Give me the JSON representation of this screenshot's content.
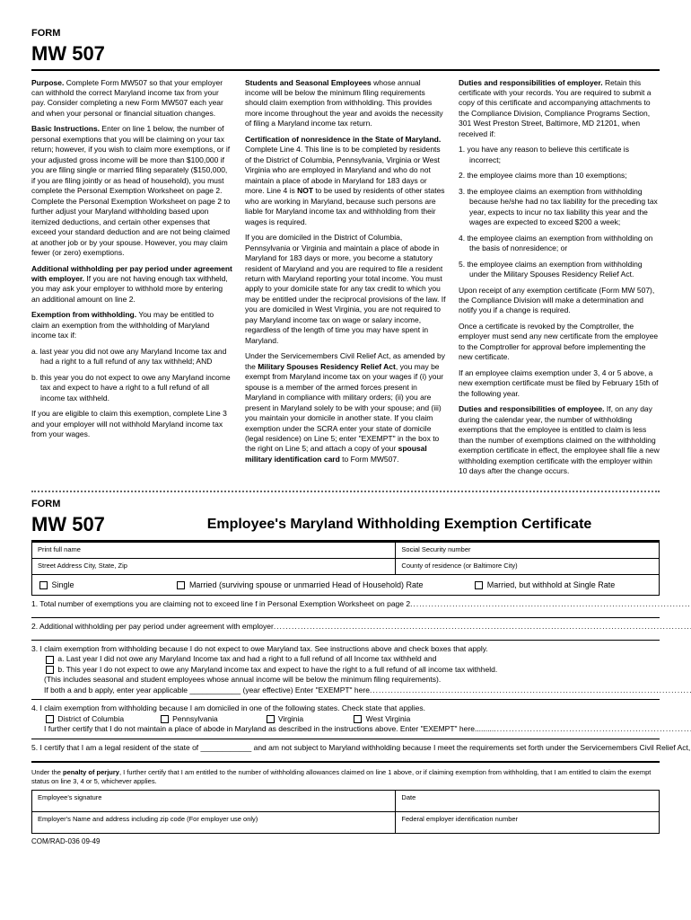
{
  "header": {
    "form_label": "FORM",
    "form_number": "MW 507"
  },
  "col1": {
    "p1": "Purpose. Complete Form MW507 so that your employer can withhold the correct Maryland income tax from your pay. Consider completing a new Form MW507 each year and when your personal or financial situation changes.",
    "p2": "Basic Instructions. Enter on line 1 below, the number of personal exemptions that you will be claiming on your tax return; however, if you wish to claim more exemptions, or if your adjusted gross income will be more than $100,000 if you are filing single or married filing separately ($150,000, if you are filing jointly or as head of household), you must complete the Personal Exemption Worksheet on page 2. Complete the Personal Exemption Worksheet on page 2 to further adjust your Maryland withholding based upon itemized deductions, and certain other expenses that exceed your standard deduction and are not being claimed at another job or by your spouse. However, you may claim fewer (or zero) exemptions.",
    "p3": "Additional withholding per pay period under agreement with employer. If you are not having enough tax withheld, you may ask your employer to withhold more by entering an additional amount on line 2.",
    "p4": "Exemption from withholding. You may be entitled to claim an exemption from the withholding of Maryland income tax if:",
    "p4a": "a. last year you did not owe any Maryland Income tax and had a right to a full refund of any tax withheld; AND",
    "p4b": "b. this year you do not expect to owe any Maryland income tax and expect to have a right to a full refund of all income tax withheld.",
    "p5": "If you are eligible to claim this exemption, complete Line 3 and your employer will not withhold Maryland income tax from your wages."
  },
  "col2": {
    "p1": "Students and Seasonal Employees whose annual income will be below the minimum filing requirements should claim exemption from withholding. This provides more income throughout the year and avoids the necessity of filing a Maryland income tax return.",
    "p2": "Certification of nonresidence in the State of Maryland. Complete Line 4. This line is to be completed by residents of the District of Columbia, Pennsylvania, Virginia or West Virginia who are employed in Maryland and who do not maintain a place of abode in Maryland for 183 days or more. Line 4 is NOT to be used by residents of other states who are working in Maryland, because such persons are liable for Maryland income tax and withholding from their wages is required.",
    "p3": "If you are domiciled in the District of Columbia, Pennsylvania or Virginia and maintain a place of abode in Maryland for 183 days or more, you become a statutory resident of Maryland and you are required to file a resident return with Maryland reporting your total income. You must apply to your domicile state for any tax credit to which you may be entitled under the reciprocal provisions of the law. If you are domiciled in West Virginia, you are not required to pay Maryland income tax on wage or salary income, regardless of the length of time you may have spent in Maryland.",
    "p4": "Under the Servicemembers Civil Relief Act, as amended by the Military Spouses Residency Relief Act, you may be exempt from Maryland income tax on your wages if (i) your spouse is a member of the armed forces present in Maryland in compliance with military orders; (ii) you are present in Maryland solely to be with your spouse; and (iii) you maintain your domicile in another state. If you claim exemption under the SCRA enter your state of domicile (legal residence) on Line 5; enter \"EXEMPT\" in the box to the right on Line 5; and attach a copy of your spousal military identification card to Form MW507."
  },
  "col3": {
    "h1": "Duties and responsibilities of employer.",
    "p1": "Retain this certificate with your records. You are required to submit a copy of this certificate and accompanying attachments to the Compliance Division, Compliance Programs Section, 301 West Preston Street, Baltimore, MD 21201, when received if:",
    "n1": "1. you have any reason to believe this certificate is incorrect;",
    "n2": "2. the employee claims more than 10 exemptions;",
    "n3": "3. the employee claims an exemption from withholding because he/she had no tax liability for the preceding tax year, expects to incur no tax liability this year and the wages are expected to exceed $200 a week;",
    "n4": "4. the employee claims an exemption from withholding on the basis of nonresidence; or",
    "n5": "5. the employee claims an exemption from withholding under the Military Spouses Residency Relief Act.",
    "p2": "Upon receipt of any exemption certificate (Form MW 507), the Compliance Division will make a determination and notify you if a change is required.",
    "p3": "Once a certificate is revoked by the Comptroller, the employer must send any new certificate from the employee to the Comptroller for approval before implementing the new certificate.",
    "p4": "If an employee claims exemption under 3, 4 or 5 above, a new exemption certificate must be filed by February 15th of the following year.",
    "h2": "Duties and responsibilities of employee.",
    "p5": "If, on any day during the calendar year, the number of withholding exemptions that the employee is entitled to claim is less than the number of exemptions claimed on the withholding exemption certificate in effect, the employee shall file a new withholding exemption certificate with the employer within 10 days after the change occurs."
  },
  "cert": {
    "title": "Employee's Maryland Withholding Exemption Certificate",
    "full_name": "Print full name",
    "ssn": "Social Security number",
    "address": "Street Address City, State, Zip",
    "county": "County of residence (or Baltimore City)",
    "single": "Single",
    "married_hoh": "Married (surviving spouse or unmarried Head of Household) Rate",
    "married_single": "Married, but withhold at Single Rate"
  },
  "lines": {
    "l1": "1. Total number of exemptions you are claiming not to exceed line f in Personal Exemption Worksheet on page 2",
    "l2": "2. Additional withholding per pay period under agreement with employer",
    "l3": "3. I claim exemption from withholding because I do not expect to owe Maryland tax. See instructions above and check boxes that apply.",
    "l3a": "a. Last year I did not owe any Maryland Income tax and had a right to a full refund of all Income tax withheld and",
    "l3b": "b. This year I do not expect to owe any Maryland income tax and expect to have the right to a full refund of all income tax withheld.",
    "l3c": "(This includes seasonal and student employees whose annual income will be below the minimum filing requirements).",
    "l3d": "If both a and b apply, enter year applicable ____________ (year effective) Enter \"EXEMPT\" here",
    "l4": "4. I claim exemption from withholding because I am domiciled in one of the following states. Check state that applies.",
    "l4_dc": "District of Columbia",
    "l4_pa": "Pennsylvania",
    "l4_va": "Virginia",
    "l4_wv": "West Virginia",
    "l4b": "I further certify that I do not maintain a place of abode in Maryland as described in the instructions above. Enter \"EXEMPT\" here",
    "l5": "5. I certify that I am a legal resident of the state of ____________ and am not subject to Maryland withholding because I meet the requirements set forth under the Servicemembers Civil Relief  Act, as amended by the Military Spouses Residency Relief Act. Enter \"EXEMPT\" here",
    "dollar": "$"
  },
  "perjury": "Under the penalty of perjury, I further certify that I am entitled to the number of withholding allowances claimed on line 1 above, or if claiming exemption from withholding, that I am entitled to claim the exempt status on line 3, 4 or 5, whichever applies.",
  "sig": {
    "emp_sig": "Employee's signature",
    "date": "Date",
    "employer": "Employer's Name and address including zip code (For employer use only)",
    "fein": "Federal employer identification number"
  },
  "footer": "COM/RAD-036 09-49",
  "nums": {
    "n1": "1.",
    "n2": "2.",
    "n3": "3.",
    "n4": "4.",
    "n5": "5."
  }
}
